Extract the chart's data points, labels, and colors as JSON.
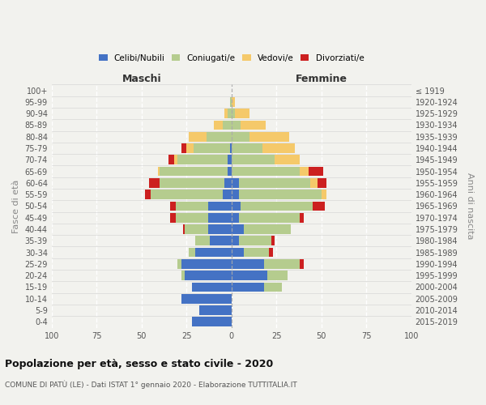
{
  "age_groups": [
    "0-4",
    "5-9",
    "10-14",
    "15-19",
    "20-24",
    "25-29",
    "30-34",
    "35-39",
    "40-44",
    "45-49",
    "50-54",
    "55-59",
    "60-64",
    "65-69",
    "70-74",
    "75-79",
    "80-84",
    "85-89",
    "90-94",
    "95-99",
    "100+"
  ],
  "birth_years": [
    "2015-2019",
    "2010-2014",
    "2005-2009",
    "2000-2004",
    "1995-1999",
    "1990-1994",
    "1985-1989",
    "1980-1984",
    "1975-1979",
    "1970-1974",
    "1965-1969",
    "1960-1964",
    "1955-1959",
    "1950-1954",
    "1945-1949",
    "1940-1944",
    "1935-1939",
    "1930-1934",
    "1925-1929",
    "1920-1924",
    "≤ 1919"
  ],
  "males": {
    "celibi": [
      22,
      18,
      28,
      22,
      26,
      28,
      20,
      12,
      13,
      13,
      13,
      5,
      4,
      2,
      2,
      1,
      0,
      0,
      0,
      0,
      0
    ],
    "coniugati": [
      0,
      0,
      0,
      0,
      2,
      2,
      4,
      8,
      13,
      18,
      18,
      40,
      36,
      38,
      28,
      20,
      14,
      5,
      2,
      1,
      0
    ],
    "vedovi": [
      0,
      0,
      0,
      0,
      0,
      0,
      0,
      0,
      0,
      0,
      0,
      0,
      0,
      1,
      2,
      4,
      10,
      5,
      2,
      0,
      0
    ],
    "divorziati": [
      0,
      0,
      0,
      0,
      0,
      0,
      0,
      0,
      1,
      3,
      3,
      3,
      6,
      0,
      3,
      3,
      0,
      0,
      0,
      0,
      0
    ]
  },
  "females": {
    "nubili": [
      0,
      0,
      0,
      18,
      20,
      18,
      7,
      4,
      7,
      4,
      5,
      4,
      4,
      0,
      0,
      0,
      0,
      0,
      0,
      0,
      0
    ],
    "coniugate": [
      0,
      0,
      0,
      10,
      11,
      20,
      14,
      18,
      26,
      34,
      40,
      46,
      40,
      38,
      24,
      17,
      10,
      5,
      2,
      0,
      0
    ],
    "vedove": [
      0,
      0,
      0,
      0,
      0,
      0,
      0,
      0,
      0,
      0,
      0,
      3,
      4,
      5,
      14,
      18,
      22,
      14,
      8,
      2,
      0
    ],
    "divorziate": [
      0,
      0,
      0,
      0,
      0,
      2,
      2,
      2,
      0,
      2,
      7,
      0,
      5,
      8,
      0,
      0,
      0,
      0,
      0,
      0,
      0
    ]
  },
  "colors": {
    "celibi": "#4472c4",
    "coniugati": "#b5cc8e",
    "vedovi": "#f5c96a",
    "divorziati": "#cc2020"
  },
  "xlim": [
    -100,
    100
  ],
  "xticks": [
    -100,
    -75,
    -50,
    -25,
    0,
    25,
    50,
    75,
    100
  ],
  "xticklabels": [
    "100",
    "75",
    "50",
    "25",
    "0",
    "25",
    "50",
    "75",
    "100"
  ],
  "title": "Popolazione per età, sesso e stato civile - 2020",
  "subtitle": "COMUNE DI PATÙ (LE) - Dati ISTAT 1° gennaio 2020 - Elaborazione TUTTITALIA.IT",
  "ylabel_left": "Fasce di età",
  "ylabel_right": "Anni di nascita",
  "label_maschi": "Maschi",
  "label_femmine": "Femmine",
  "legend_labels": [
    "Celibi/Nubili",
    "Coniugati/e",
    "Vedovi/e",
    "Divorziati/e"
  ],
  "bg_color": "#f2f2ee",
  "grid_color": "#ffffff",
  "sep_color": "#cccccc"
}
